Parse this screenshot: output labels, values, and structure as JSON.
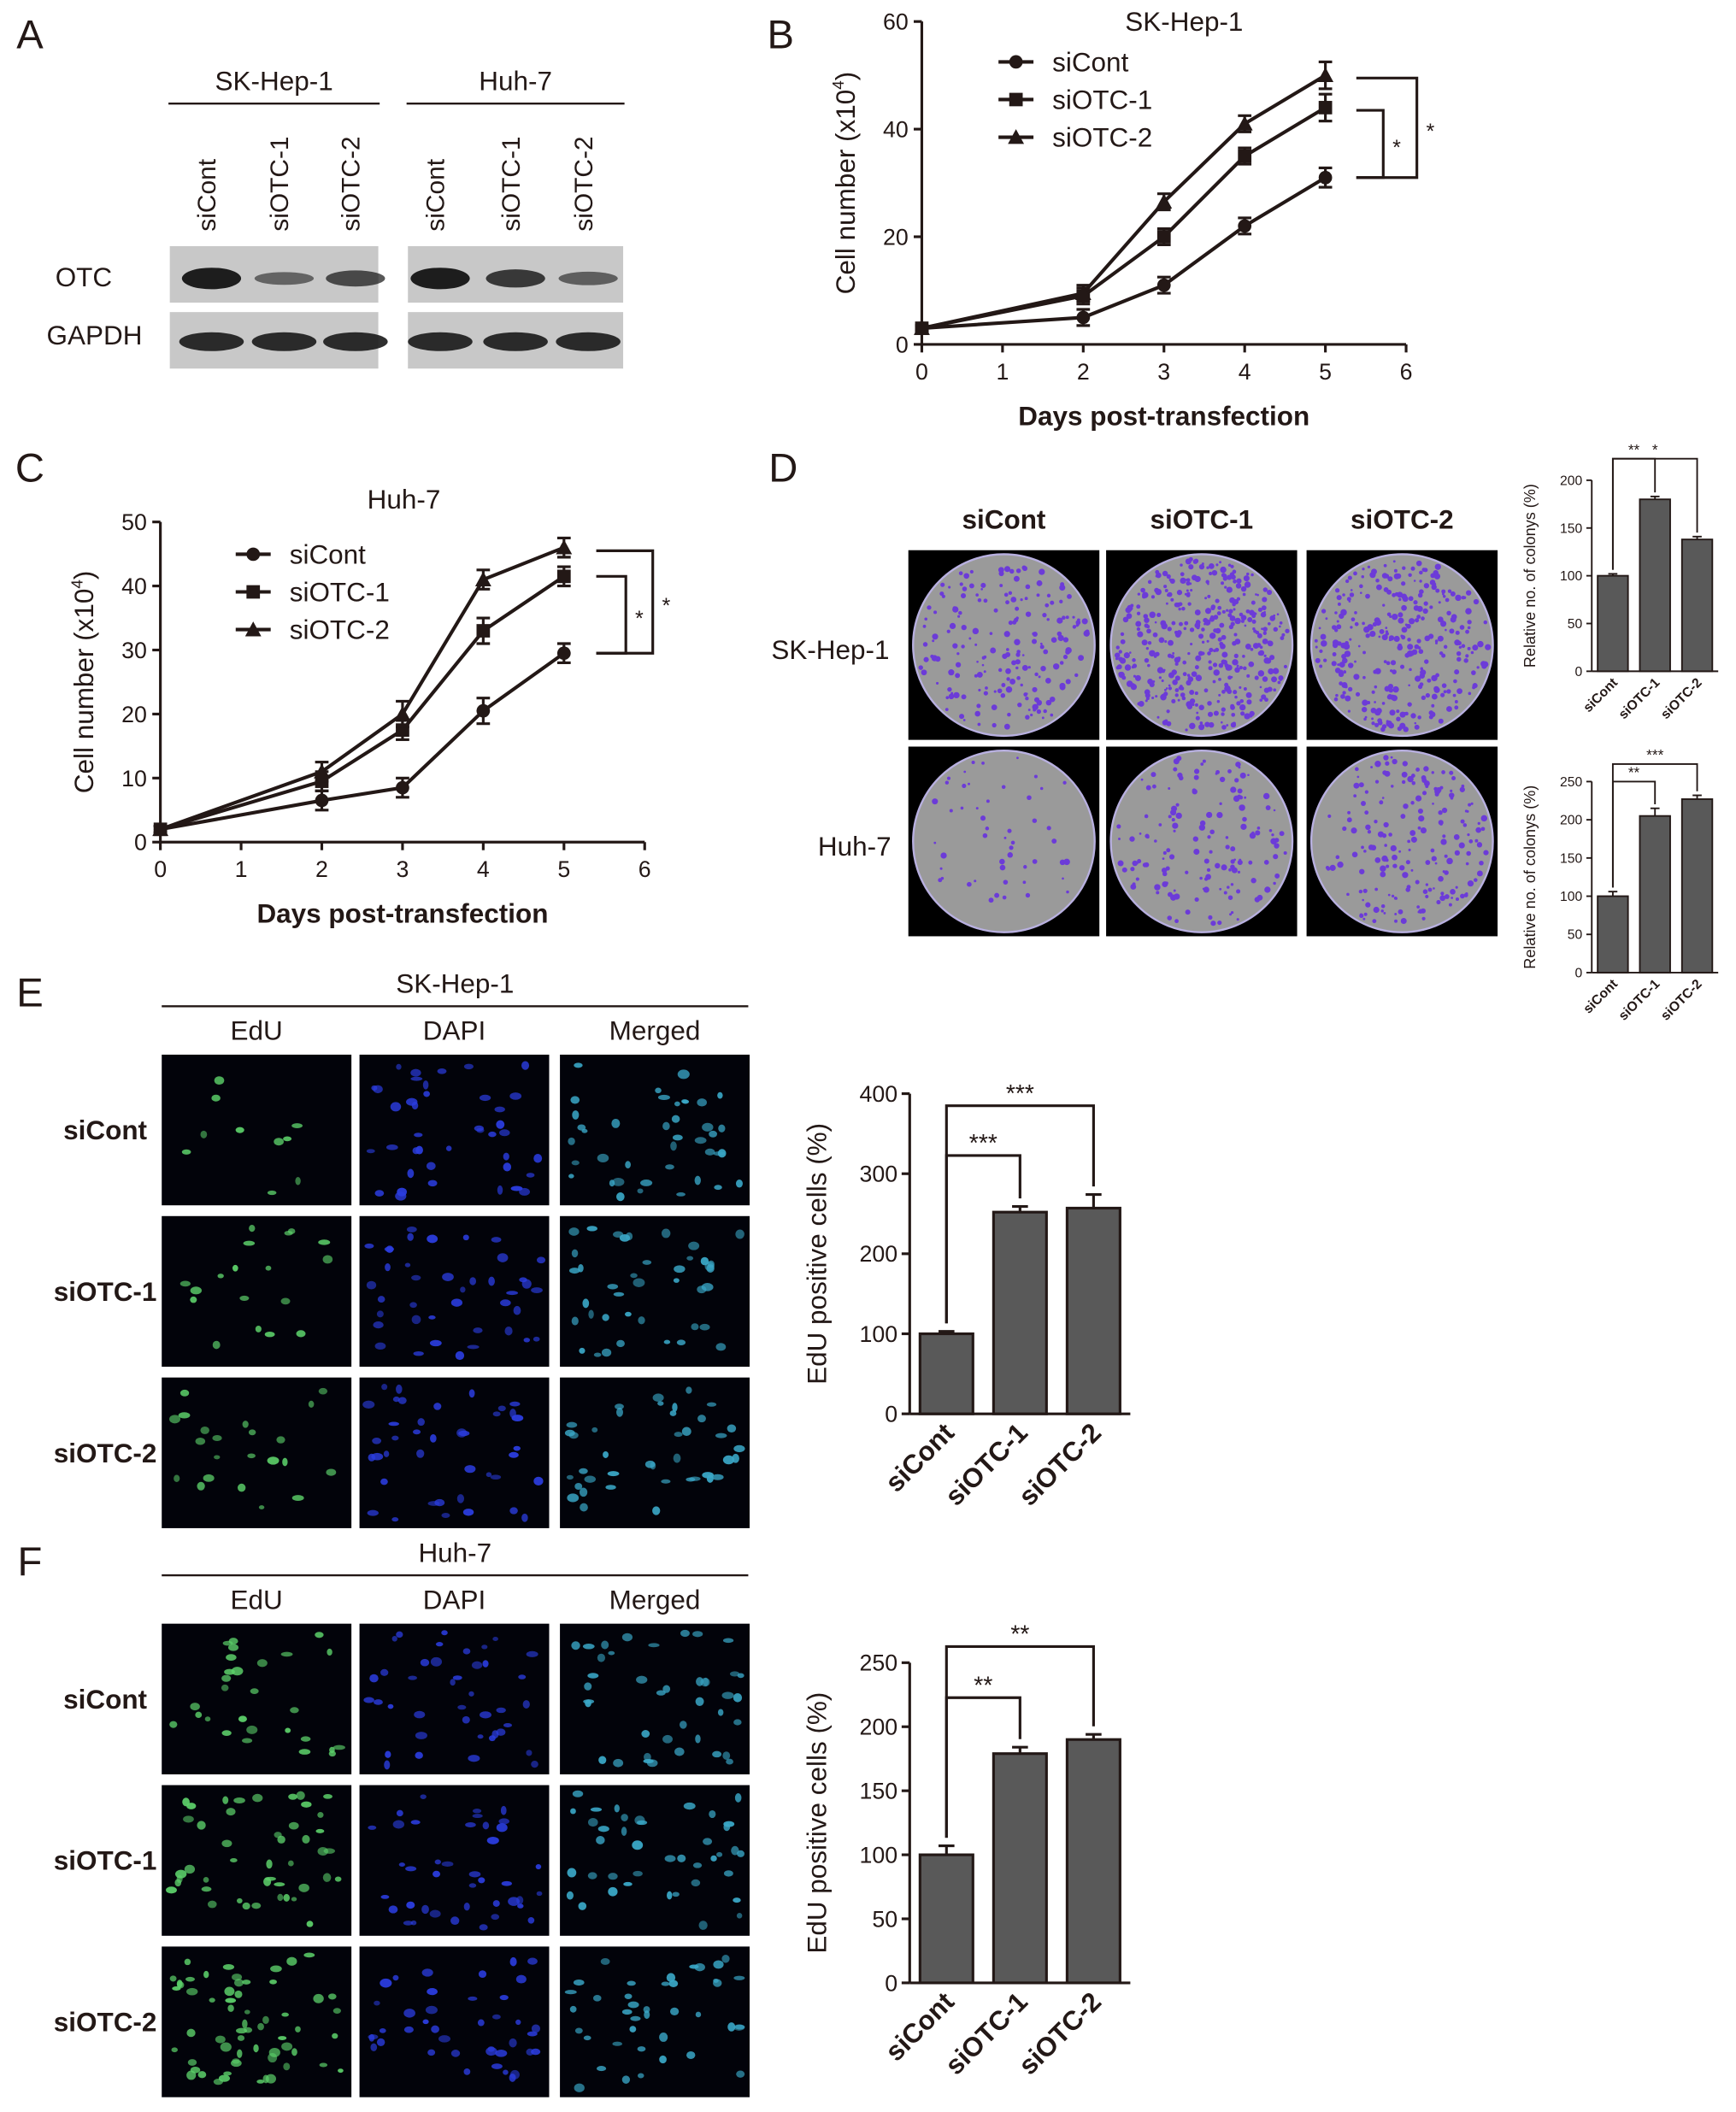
{
  "panels": {
    "A": {
      "letter": "A",
      "groups": [
        "SK-Hep-1",
        "Huh-7"
      ],
      "lanes": [
        "siCont",
        "siOTC-1",
        "siOTC-2"
      ],
      "rows": [
        "OTC",
        "GAPDH"
      ],
      "otc_band_intensity": [
        [
          1.0,
          0.35,
          0.6
        ],
        [
          1.0,
          0.75,
          0.4
        ]
      ]
    },
    "D": {
      "letter": "D",
      "columns": [
        "siCont",
        "siOTC-1",
        "siOTC-2"
      ],
      "rows": [
        "SK-Hep-1",
        "Huh-7"
      ],
      "colony_density": [
        [
          0.45,
          1.0,
          0.75
        ],
        [
          0.12,
          0.35,
          0.45
        ]
      ],
      "colors": {
        "dish": "#9a9a9a",
        "colony": "#6c3bd8",
        "background": "#000000"
      }
    },
    "E": {
      "letter": "E",
      "title": "SK-Hep-1",
      "channels": [
        "EdU",
        "DAPI",
        "Merged"
      ],
      "rows": [
        "siCont",
        "siOTC-1",
        "siOTC-2"
      ],
      "cells_per_field": [
        [
          10,
          40,
          40
        ],
        [
          18,
          40,
          40
        ],
        [
          22,
          40,
          40
        ]
      ]
    },
    "F": {
      "letter": "F",
      "title": "Huh-7",
      "channels": [
        "EdU",
        "DAPI",
        "Merged"
      ],
      "rows": [
        "siCont",
        "siOTC-1",
        "siOTC-2"
      ],
      "cells_per_field": [
        [
          28,
          40,
          40
        ],
        [
          45,
          40,
          40
        ],
        [
          60,
          40,
          40
        ]
      ]
    }
  },
  "chart_data": [
    {
      "panel": "B",
      "type": "line",
      "title": "SK-Hep-1",
      "xlabel": "Days post-transfection",
      "ylabel": "Cell number (x10",
      "ylabel_sup": "4",
      "xlim": [
        0,
        6
      ],
      "ylim": [
        0,
        60
      ],
      "xticks": [
        0,
        1,
        2,
        3,
        4,
        5,
        6
      ],
      "yticks": [
        0,
        20,
        40,
        60
      ],
      "x": [
        0,
        2,
        3,
        4,
        5
      ],
      "series": [
        {
          "name": "siCont",
          "marker": "circle",
          "values": [
            3,
            5,
            11,
            22,
            31
          ],
          "errors": [
            0.5,
            1.5,
            1.5,
            1.5,
            1.8
          ]
        },
        {
          "name": "siOTC-1",
          "marker": "square",
          "values": [
            3,
            9,
            20,
            35,
            44
          ],
          "errors": [
            0.5,
            1.5,
            1.5,
            1.5,
            2.5
          ]
        },
        {
          "name": "siOTC-2",
          "marker": "triangle",
          "values": [
            3,
            9.5,
            26.5,
            41,
            50
          ],
          "errors": [
            0.5,
            1.5,
            1.5,
            1.5,
            2.5
          ]
        }
      ],
      "significance": [
        "*",
        "*"
      ]
    },
    {
      "panel": "C",
      "type": "line",
      "title": "Huh-7",
      "xlabel": "Days post-transfection",
      "ylabel": "Cell number (x10",
      "ylabel_sup": "4",
      "xlim": [
        0,
        6
      ],
      "ylim": [
        0,
        50
      ],
      "xticks": [
        0,
        1,
        2,
        3,
        4,
        5,
        6
      ],
      "yticks": [
        0,
        10,
        20,
        30,
        40,
        50
      ],
      "x": [
        0,
        2,
        3,
        4,
        5
      ],
      "series": [
        {
          "name": "siCont",
          "marker": "circle",
          "values": [
            2,
            6.5,
            8.5,
            20.5,
            29.5
          ],
          "errors": [
            0.5,
            1.5,
            1.5,
            2,
            1.5
          ]
        },
        {
          "name": "siOTC-1",
          "marker": "square",
          "values": [
            2,
            9.5,
            17.5,
            33,
            41.5
          ],
          "errors": [
            0.5,
            1.5,
            1.5,
            2,
            1.5
          ]
        },
        {
          "name": "siOTC-2",
          "marker": "triangle",
          "values": [
            2,
            11,
            20,
            41,
            46
          ],
          "errors": [
            0.5,
            1.5,
            2,
            1.5,
            1.5
          ]
        }
      ],
      "significance": [
        "*",
        "*"
      ]
    },
    {
      "panel": "D-top",
      "type": "bar",
      "categories": [
        "siCont",
        "siOTC-1",
        "siOTC-2"
      ],
      "values": [
        100,
        180,
        138
      ],
      "errors": [
        2,
        3,
        3
      ],
      "ylabel": "Relative no. of colonys (%)",
      "ylim": [
        0,
        200
      ],
      "yticks": [
        0,
        50,
        100,
        150,
        200
      ],
      "significance": [
        {
          "from": 0,
          "to": 1,
          "label": "**"
        },
        {
          "from": 0,
          "to": 2,
          "label": "*"
        }
      ]
    },
    {
      "panel": "D-bottom",
      "type": "bar",
      "categories": [
        "siCont",
        "siOTC-1",
        "siOTC-2"
      ],
      "values": [
        100,
        205,
        227
      ],
      "errors": [
        6,
        10,
        5
      ],
      "ylabel": "Relative no. of colonys (%)",
      "ylim": [
        0,
        250
      ],
      "yticks": [
        0,
        50,
        100,
        150,
        200,
        250
      ],
      "significance": [
        {
          "from": 0,
          "to": 1,
          "label": "**"
        },
        {
          "from": 0,
          "to": 2,
          "label": "***"
        }
      ]
    },
    {
      "panel": "E-bar",
      "type": "bar",
      "categories": [
        "siCont",
        "siOTC-1",
        "siOTC-2"
      ],
      "values": [
        100,
        252,
        257
      ],
      "errors": [
        3,
        7,
        17
      ],
      "ylabel": "EdU positive cells (%)",
      "ylim": [
        0,
        400
      ],
      "yticks": [
        0,
        100,
        200,
        300,
        400
      ],
      "significance": [
        {
          "from": 0,
          "to": 1,
          "label": "***"
        },
        {
          "from": 0,
          "to": 2,
          "label": "***"
        }
      ]
    },
    {
      "panel": "F-bar",
      "type": "bar",
      "categories": [
        "siCont",
        "siOTC-1",
        "siOTC-2"
      ],
      "values": [
        100,
        179,
        190
      ],
      "errors": [
        7,
        5,
        4
      ],
      "ylabel": "EdU positive cells (%)",
      "ylim": [
        0,
        250
      ],
      "yticks": [
        0,
        50,
        100,
        150,
        200,
        250
      ],
      "significance": [
        {
          "from": 0,
          "to": 1,
          "label": "**"
        },
        {
          "from": 0,
          "to": 2,
          "label": "**"
        }
      ]
    }
  ]
}
